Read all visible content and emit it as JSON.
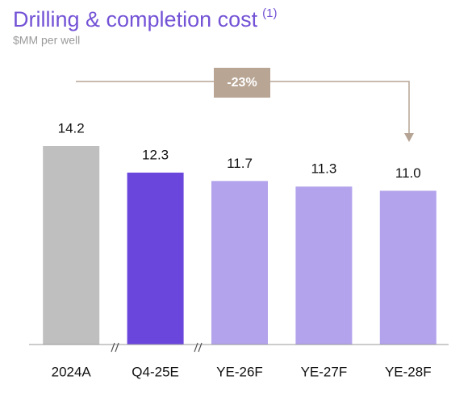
{
  "chart_data": {
    "type": "bar",
    "title": "Drilling & completion cost",
    "title_note": "(1)",
    "subtitle": "$MM per well",
    "annotation": "-23%",
    "categories": [
      "2024A",
      "Q4-25E",
      "YE-26F",
      "YE-27F",
      "YE-28F"
    ],
    "values": [
      14.2,
      12.3,
      11.7,
      11.3,
      11.0
    ],
    "value_labels": [
      "14.2",
      "12.3",
      "11.7",
      "11.3",
      "11.0"
    ],
    "colors": [
      "#bfbfbf",
      "#6a46dc",
      "#b3a3ec",
      "#b3a3ec",
      "#b3a3ec"
    ]
  }
}
